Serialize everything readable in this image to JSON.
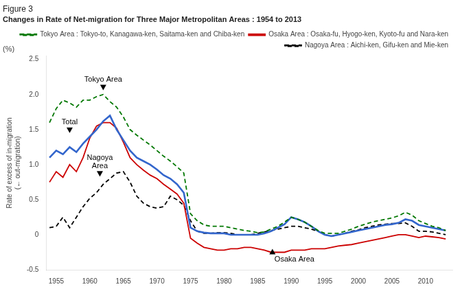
{
  "chart_data": {
    "type": "line",
    "title": "Figure 3",
    "subtitle": "Changes in Rate of Net-migration for Three Major Metropolitan Areas : 1954 to 2013",
    "ylabel": "Rate of excess of in-migration\n(← out-migration)",
    "yunits": "(%)",
    "x": [
      1954,
      1955,
      1956,
      1957,
      1958,
      1959,
      1960,
      1961,
      1962,
      1963,
      1964,
      1965,
      1966,
      1967,
      1968,
      1969,
      1970,
      1971,
      1972,
      1973,
      1974,
      1975,
      1976,
      1977,
      1978,
      1979,
      1980,
      1981,
      1982,
      1983,
      1984,
      1985,
      1986,
      1987,
      1988,
      1989,
      1990,
      1991,
      1992,
      1993,
      1994,
      1995,
      1996,
      1997,
      1998,
      1999,
      2000,
      2001,
      2002,
      2003,
      2004,
      2005,
      2006,
      2007,
      2008,
      2009,
      2010,
      2011,
      2012,
      2013
    ],
    "xlim": [
      1953.5,
      2014
    ],
    "xticks": [
      1955,
      1960,
      1965,
      1970,
      1975,
      1980,
      1985,
      1990,
      1995,
      2000,
      2005,
      2010
    ],
    "ylim": [
      -0.5,
      2.55
    ],
    "yticks": [
      -0.5,
      0,
      0.5,
      {
        "value": 1.0,
        "label": "1.0"
      },
      1.5,
      {
        "value": 2.0,
        "label": "2.0"
      },
      2.5
    ],
    "grid": false,
    "legend": "upper right",
    "series": [
      {
        "name": "Tokyo Area : Tokyo-to, Kanagawa-ken, Saitama-ken and Chiba-ken",
        "color": "#007700",
        "line_style": "dashed",
        "values": [
          1.6,
          1.8,
          1.92,
          1.88,
          1.82,
          1.92,
          1.92,
          1.97,
          2.0,
          1.9,
          1.82,
          1.68,
          1.5,
          1.42,
          1.35,
          1.28,
          1.2,
          1.12,
          1.05,
          0.97,
          0.88,
          0.3,
          0.2,
          0.14,
          0.12,
          0.12,
          0.12,
          0.1,
          0.08,
          0.06,
          0.05,
          0.03,
          0.04,
          0.08,
          0.12,
          0.18,
          0.25,
          0.22,
          0.18,
          0.12,
          0.06,
          0.02,
          0.02,
          0.02,
          0.05,
          0.08,
          0.12,
          0.15,
          0.18,
          0.2,
          0.22,
          0.24,
          0.27,
          0.32,
          0.28,
          0.2,
          0.16,
          0.12,
          0.1,
          0.06
        ]
      },
      {
        "color": "#3366CC",
        "line_style": "solid",
        "values": [
          1.1,
          1.2,
          1.15,
          1.25,
          1.18,
          1.3,
          1.4,
          1.5,
          1.62,
          1.7,
          1.5,
          1.35,
          1.2,
          1.1,
          1.05,
          1.0,
          0.93,
          0.85,
          0.8,
          0.72,
          0.6,
          0.1,
          0.05,
          0.03,
          0.02,
          0.02,
          0.02,
          0.0,
          0.0,
          0.0,
          0.0,
          0.0,
          0.02,
          0.05,
          0.1,
          0.15,
          0.25,
          0.22,
          0.18,
          0.12,
          0.05,
          0.0,
          -0.02,
          0.0,
          0.02,
          0.04,
          0.06,
          0.08,
          0.1,
          0.12,
          0.14,
          0.15,
          0.17,
          0.22,
          0.2,
          0.14,
          0.12,
          0.1,
          0.08,
          0.06
        ]
      },
      {
        "name": "Osaka Area : Osaka-fu, Hyogo-ken, Kyoto-fu and Nara-ken",
        "color": "#CC0000",
        "line_style": "solid",
        "values": [
          0.75,
          0.9,
          0.82,
          1.0,
          0.9,
          1.1,
          1.38,
          1.55,
          1.6,
          1.6,
          1.52,
          1.32,
          1.1,
          1.0,
          0.92,
          0.85,
          0.8,
          0.72,
          0.65,
          0.58,
          0.45,
          -0.05,
          -0.12,
          -0.18,
          -0.2,
          -0.22,
          -0.22,
          -0.2,
          -0.2,
          -0.18,
          -0.18,
          -0.2,
          -0.22,
          -0.25,
          -0.25,
          -0.25,
          -0.22,
          -0.22,
          -0.22,
          -0.2,
          -0.2,
          -0.2,
          -0.18,
          -0.16,
          -0.15,
          -0.14,
          -0.12,
          -0.1,
          -0.08,
          -0.06,
          -0.04,
          -0.02,
          0.0,
          0.0,
          -0.02,
          -0.04,
          -0.02,
          -0.03,
          -0.04,
          -0.06
        ]
      },
      {
        "name": "Nagoya Area : Aichi-ken, Gifu-ken and Mie-ken",
        "color": "#000000",
        "line_style": "dashed",
        "values": [
          0.1,
          0.12,
          0.25,
          0.1,
          0.25,
          0.4,
          0.52,
          0.6,
          0.72,
          0.8,
          0.88,
          0.9,
          0.75,
          0.55,
          0.45,
          0.4,
          0.38,
          0.4,
          0.55,
          0.5,
          0.42,
          0.2,
          0.05,
          0.02,
          0.02,
          0.03,
          0.03,
          0.02,
          0.0,
          0.0,
          0.0,
          0.02,
          0.04,
          0.06,
          0.08,
          0.1,
          0.12,
          0.12,
          0.1,
          0.08,
          0.05,
          0.0,
          -0.02,
          0.0,
          0.02,
          0.05,
          0.07,
          0.1,
          0.12,
          0.14,
          0.15,
          0.16,
          0.16,
          0.17,
          0.12,
          0.05,
          0.05,
          0.04,
          0.02,
          0.0
        ]
      }
    ],
    "annotations": [
      {
        "text": "Tokyo Area",
        "x": 1962.0,
        "y": 2.1,
        "marker": "triangle-down"
      },
      {
        "text": "Total",
        "x": 1957.0,
        "y": 1.49,
        "marker": "triangle-down"
      },
      {
        "text": "Nagoya\nArea",
        "x": 1961.5,
        "y": 0.87,
        "marker": "triangle-down"
      },
      {
        "text": "Osaka Area",
        "x": 1987.2,
        "y": -0.24,
        "marker": "triangle-up"
      }
    ]
  }
}
